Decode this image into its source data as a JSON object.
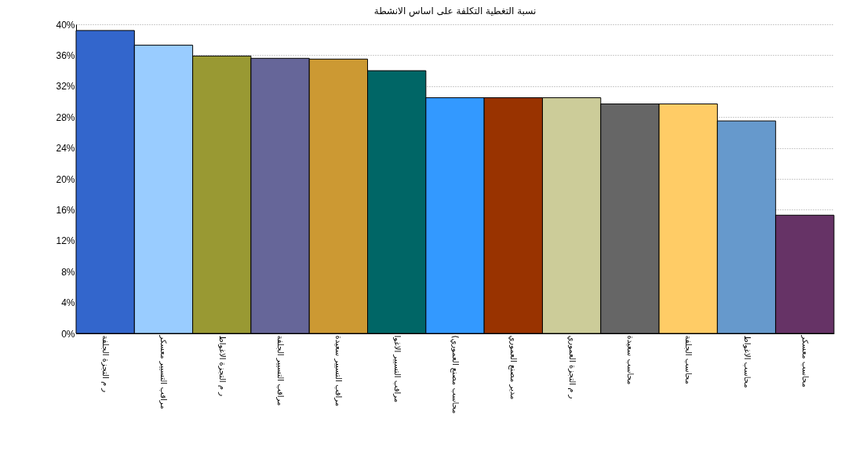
{
  "chart_data": {
    "type": "bar",
    "title": "نسبة التغطية التكلفة على اساس الانشطة",
    "categories": [
      "ر م التجزة الجلفة",
      "مراقب التسيير معسكر",
      "ر م التجزة الاغواط",
      "مراقب التسيير الجلفة",
      "مراقب التسيير سعيدة",
      "مراقب التسيير الاغوا",
      "(محاسب مصنع العموري",
      "مدير مصنع العموري",
      "ر م التجزة العموري",
      "محاسب سعيدة",
      "محاسب الجلفة",
      "محاسب الاغواط",
      "محاسب معسكر"
    ],
    "values": [
      39.2,
      37.3,
      35.9,
      35.6,
      35.5,
      34.0,
      30.5,
      30.5,
      30.5,
      29.7,
      29.7,
      27.5,
      15.3
    ],
    "colors": [
      "#3366cc",
      "#99ccff",
      "#999933",
      "#666699",
      "#cc9933",
      "#006666",
      "#3399ff",
      "#993300",
      "#cccc99",
      "#666666",
      "#ffcc66",
      "#6699cc",
      "#663366"
    ],
    "ylim": [
      0,
      40
    ],
    "yticks": [
      {
        "value": 0,
        "label": "0%"
      },
      {
        "value": 4,
        "label": "4%"
      },
      {
        "value": 8,
        "label": "8%"
      },
      {
        "value": 12,
        "label": "12%"
      },
      {
        "value": 16,
        "label": "16%"
      },
      {
        "value": 20,
        "label": "20%"
      },
      {
        "value": 24,
        "label": "24%"
      },
      {
        "value": 28,
        "label": "28%"
      },
      {
        "value": 32,
        "label": "32%"
      },
      {
        "value": 36,
        "label": "36%"
      },
      {
        "value": 40,
        "label": "40%"
      }
    ],
    "grid": "y",
    "legend": false
  }
}
